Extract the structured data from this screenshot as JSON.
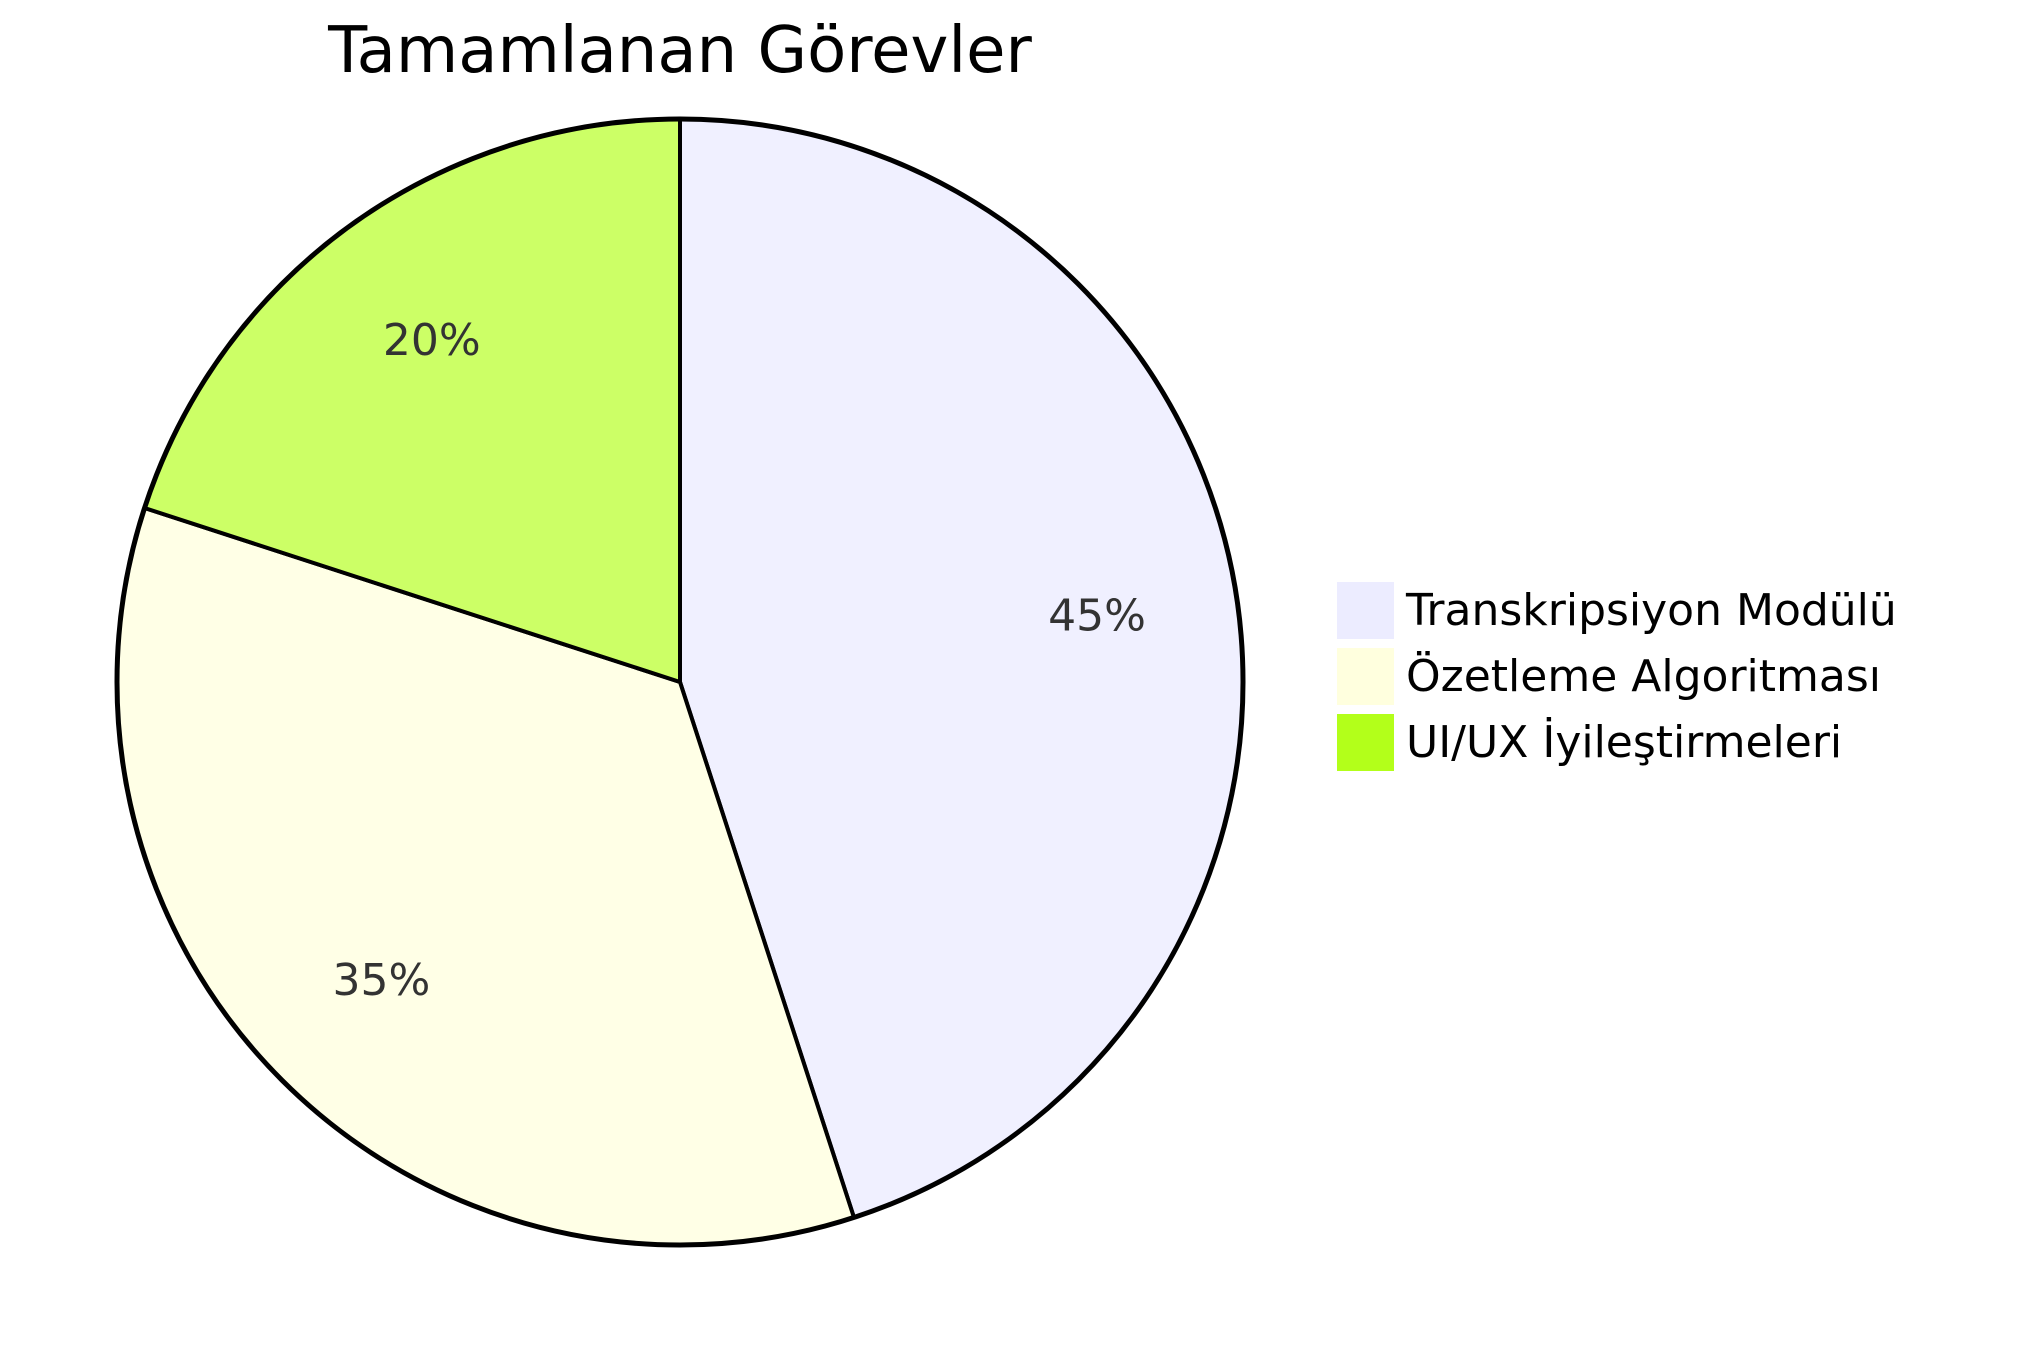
{
  "chart_data": {
    "type": "pie",
    "title": "Tamamlanan Görevler",
    "slices": [
      {
        "label": "Transkripsiyon Modülü",
        "value": 45,
        "display": "45%",
        "color": "#f0f0ff"
      },
      {
        "label": "Özetleme Algoritması",
        "value": 35,
        "display": "35%",
        "color": "#ffffe6"
      },
      {
        "label": "UI/UX İyileştirmeleri",
        "value": 20,
        "display": "20%",
        "color": "#ccff66"
      }
    ],
    "legend_colors": [
      "#ececff",
      "#ffffde",
      "#b3ff1a"
    ],
    "stroke_color": "#000000",
    "legend_position": "right"
  }
}
